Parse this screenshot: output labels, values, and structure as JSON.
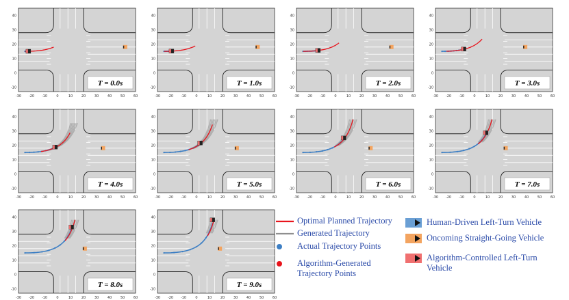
{
  "axes": {
    "x_ticks": [
      "-30",
      "-20",
      "-10",
      "0",
      "10",
      "20",
      "30",
      "40",
      "50",
      "60"
    ],
    "y_ticks": [
      "40",
      "30",
      "20",
      "10",
      "0",
      "-10"
    ]
  },
  "panels": [
    {
      "time_label": "T = 0.0s",
      "oncoming_x": 52,
      "progress": 0.0
    },
    {
      "time_label": "T = 1.0s",
      "oncoming_x": 47,
      "progress": 0.1
    },
    {
      "time_label": "T = 2.0s",
      "oncoming_x": 43,
      "progress": 0.2
    },
    {
      "time_label": "T = 3.0s",
      "oncoming_x": 39,
      "progress": 0.3
    },
    {
      "time_label": "T = 4.0s",
      "oncoming_x": 35,
      "progress": 0.45
    },
    {
      "time_label": "T = 5.0s",
      "oncoming_x": 31,
      "progress": 0.58
    },
    {
      "time_label": "T = 6.0s",
      "oncoming_x": 27,
      "progress": 0.7
    },
    {
      "time_label": "T = 7.0s",
      "oncoming_x": 24,
      "progress": 0.8
    },
    {
      "time_label": "T = 8.0s",
      "oncoming_x": 21,
      "progress": 0.9
    },
    {
      "time_label": "T = 9.0s",
      "oncoming_x": 18,
      "progress": 1.0
    }
  ],
  "legend": {
    "optimal": "Optimal Planned Trajectory",
    "generated": "Generated Trajectory",
    "actual_points": "Actual Trajectory Points",
    "algo_points_line1": "Algorithm-Generated",
    "algo_points_line2": "Trajectory Points",
    "human_vehicle": "Human-Driven Left-Turn Vehicle",
    "oncoming_vehicle": "Oncoming Straight-Going Vehicle",
    "algo_vehicle_line1": "Algorithm-Controlled Left-Turn",
    "algo_vehicle_line2": "Vehicle"
  },
  "colors": {
    "road": "#d4d4d4",
    "optimal": "#e8141c",
    "generated": "#8f8f8f",
    "actual_points": "#3d7fc4",
    "algo_points": "#e8141c",
    "human_vehicle": "#6a9fd4",
    "oncoming_vehicle": "#f3a460",
    "algo_vehicle": "#f07070",
    "legend_text": "#2a4aa8"
  }
}
